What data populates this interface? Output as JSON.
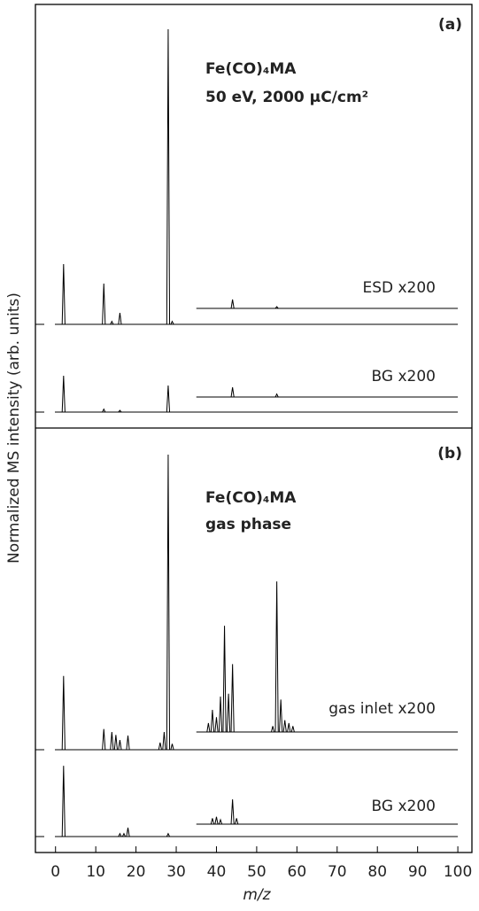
{
  "chart_data": {
    "type": "spectrum",
    "xlabel": "m/z",
    "ylabel": "Normalized MS intensity (arb. units)",
    "xlim": [
      -5,
      103.5
    ],
    "xticks": [
      0,
      10,
      20,
      30,
      40,
      50,
      60,
      70,
      80,
      90,
      100
    ],
    "color": "#000000",
    "panels": [
      {
        "label": "(a)",
        "annotation": [
          "Fe(CO)₄MA",
          "50 eV, 2000 μC/cm²"
        ],
        "traces": [
          {
            "x": [
              2,
              12,
              14,
              16,
              28,
              29
            ],
            "values": [
              20.4,
              13.8,
              1,
              3.9,
              100,
              1
            ],
            "zoom": {
              "name": "ESD x200",
              "xlim": [
                35,
                100
              ],
              "x": [
                44,
                55
              ],
              "values": [
                3,
                0.6
              ]
            }
          },
          {
            "x": [
              2,
              12,
              16,
              28
            ],
            "values": [
              12.3,
              1,
              0.6,
              9
            ],
            "zoom": {
              "name": "BG x200",
              "xlim": [
                35,
                100
              ],
              "x": [
                44,
                55
              ],
              "values": [
                3.3,
                1
              ]
            }
          }
        ]
      },
      {
        "label": "(b)",
        "annotation": [
          "Fe(CO)₄MA",
          "gas phase"
        ],
        "traces": [
          {
            "x": [
              2,
              12,
              14,
              15,
              16,
              18,
              26,
              27,
              28,
              29
            ],
            "values": [
              25,
              7,
              6,
              5,
              3.3,
              4.8,
              2.4,
              6,
              100,
              2
            ],
            "zoom": {
              "name": "gas inlet x200",
              "xlim": [
                35,
                100
              ],
              "x": [
                38,
                39,
                40,
                41,
                42,
                43,
                44,
                54,
                55,
                56,
                57,
                58,
                59
              ],
              "values": [
                3,
                7.5,
                5,
                12,
                36,
                13,
                23,
                2,
                51,
                11,
                4,
                3,
                2
              ]
            }
          },
          {
            "x": [
              2,
              16,
              17,
              18,
              28
            ],
            "values": [
              24,
              1,
              1,
              3,
              1
            ],
            "zoom": {
              "name": "BG x200",
              "xlim": [
                35,
                100
              ],
              "x": [
                39,
                40,
                41,
                44,
                45
              ],
              "values": [
                2,
                2.5,
                1.5,
                8.4,
                2
              ]
            }
          }
        ]
      }
    ]
  }
}
